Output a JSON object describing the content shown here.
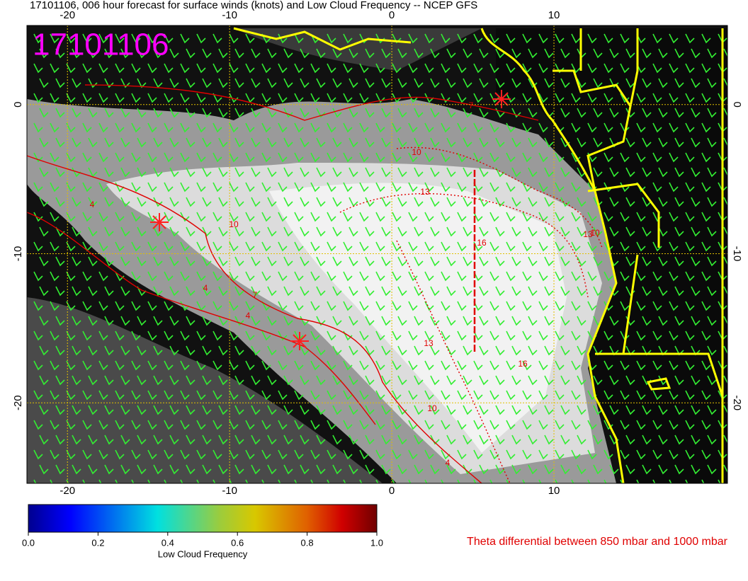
{
  "title": "17101106, 006 hour forecast for surface winds (knots) and Low Cloud Frequency -- NCEP GFS",
  "stamp": "17101106",
  "map": {
    "xlim": [
      -22.5,
      20.7
    ],
    "ylim": [
      -25.4,
      5.3
    ],
    "xticks": [
      -20,
      -10,
      0,
      10
    ],
    "yticks": [
      0,
      -10,
      -20
    ],
    "contour_labels": [
      "4",
      "10",
      "4",
      "7",
      "4",
      "13",
      "10",
      "16",
      "13",
      "10",
      "13",
      "16",
      "10",
      "4",
      "7"
    ]
  },
  "colorbar": {
    "range": [
      0,
      1
    ],
    "ticks": [
      {
        "value": 0,
        "label": "0.0"
      },
      {
        "value": 0.2,
        "label": "0.2"
      },
      {
        "value": 0.4,
        "label": "0.4"
      },
      {
        "value": 0.6,
        "label": "0.6"
      },
      {
        "value": 0.8,
        "label": "0.8"
      },
      {
        "value": 1,
        "label": "1.0"
      }
    ],
    "label": "Low Cloud Frequency"
  },
  "note": "Theta differential between 850 mbar and 1000 mbar"
}
